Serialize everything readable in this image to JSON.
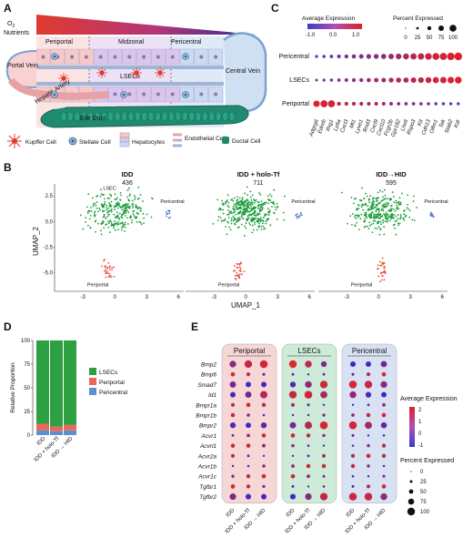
{
  "panels": {
    "A": "A",
    "B": "B",
    "C": "C",
    "D": "D",
    "E": "E"
  },
  "panel_a": {
    "o2_line1": "O",
    "o2_sub": "2",
    "o2_line2": "Nutrients",
    "zone_periportal": "Periportal",
    "zone_midzonal": "Midzonal",
    "zone_pericentral": "Pericentral",
    "portal_vein": "Portal Vein",
    "hepatic_artery": "Hepatic Artery",
    "lsecs": "LSECs",
    "central_vein": "Central Vein",
    "bile_duct": "Bile Duct",
    "legend": {
      "kupffer": "Kupffer Cell",
      "stellate": "Stellate Cell",
      "hepatocytes": "Hepatocytes",
      "endothelial": "Endothelial Cells",
      "ductal": "Ductal Cell"
    },
    "colors": {
      "gradient_start": "#e03a2f",
      "gradient_end": "#2e3192",
      "portal": "#f2b8b8",
      "central": "#a9c4e6",
      "bile": "#1f8a70",
      "hep_red": "#f6c9c9",
      "hep_mid": "#d9c6ee",
      "hep_blue": "#c9dbf3"
    }
  },
  "panel_b": {
    "panels": [
      {
        "title": "IDD",
        "count": "436"
      },
      {
        "title": "IDD + holo-Tf",
        "count": "711"
      },
      {
        "title": "IDD→HID",
        "count": "595"
      }
    ],
    "labels": {
      "lsec": "LSEC",
      "pericentral": "Pericentral",
      "periportal": "Periportal"
    },
    "xlabel": "UMAP_1",
    "ylabel": "UMAP_2",
    "xticks": [
      "-3",
      "0",
      "3",
      "6"
    ],
    "yticks": [
      "2.5",
      "0.0",
      "-2.5",
      "-5.0"
    ],
    "colors": {
      "lsec": "#1a9c3a",
      "periportal": "#e8503a",
      "pericentral": "#4a78c8"
    }
  },
  "panel_c": {
    "legend_color_title": "Average Expression",
    "legend_color_ticks": [
      "-1.0",
      "0.0",
      "1.0"
    ],
    "legend_size_title": "Percent Expressed",
    "legend_size_ticks": [
      "0",
      "25",
      "50",
      "75",
      "100"
    ],
    "rows": [
      "Pericentral",
      "LSECs",
      "Periportal"
    ],
    "genes": [
      "Adgrg6",
      "Ednrb",
      "Ifng1",
      "Ly6a",
      "Cxcl3",
      "Mt1",
      "Lyve1",
      "Rnd3",
      "Cxcl9",
      "Cxcl10",
      "Fcgr2b",
      "Gpr182",
      "Lhx6",
      "Rspo3",
      "Kit",
      "Cdh13",
      "Olfm1",
      "Tek",
      "Stab2",
      "Kdr"
    ]
  },
  "chart_data": [
    {
      "type": "bar",
      "title": "",
      "ylabel": "Relative Proportion",
      "categories": [
        "IDD",
        "IDD + holo-Tf",
        "IDD → HID"
      ],
      "ylim": [
        0,
        100
      ],
      "yticks": [
        "0",
        "25",
        "50",
        "75",
        "100"
      ],
      "stacked": true,
      "series": [
        {
          "name": "Pericentral",
          "color": "#5b8fd0",
          "values": [
            5,
            4,
            5
          ]
        },
        {
          "name": "Periportal",
          "color": "#e8695a",
          "values": [
            7,
            5,
            6
          ]
        },
        {
          "name": "LSECs",
          "color": "#2ea043",
          "values": [
            88,
            91,
            89
          ]
        }
      ],
      "legend_placement": "right"
    }
  ],
  "panel_e": {
    "groups": [
      "Periportal",
      "LSECs",
      "Pericentral"
    ],
    "group_colors": [
      "#f7d6d6",
      "#cdebd8",
      "#d8e2f3"
    ],
    "genes": [
      "Bmp2",
      "Bmp6",
      "Smad7",
      "Id1",
      "Bmpr1a",
      "Bmpr1b",
      "Bmpr2",
      "Acvr1",
      "Acvrl1",
      "Acvr2a",
      "Acvr1b",
      "Acvr1c",
      "Tgfbr1",
      "Tgfbr2"
    ],
    "conditions": [
      "IDD",
      "IDD + holo-Tf",
      "IDD → HID"
    ],
    "legend_color_title": "Average Expression",
    "legend_color_ticks": [
      "2",
      "1",
      "0",
      "-1"
    ],
    "legend_size_title": "Percent Expressed",
    "legend_size_ticks": [
      "0",
      "25",
      "50",
      "75",
      "100"
    ]
  }
}
